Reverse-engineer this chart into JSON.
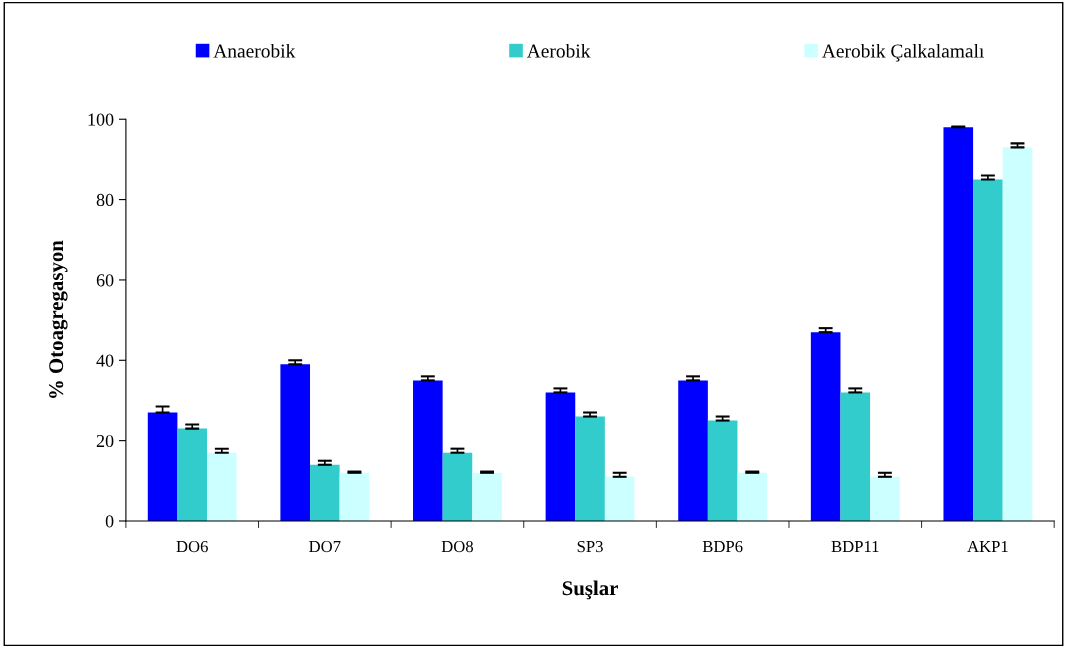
{
  "chart_data": {
    "type": "bar",
    "xlabel": "Suşlar",
    "ylabel": "% Otoagregasyon",
    "categories": [
      "DO6",
      "DO7",
      "DO8",
      "SP3",
      "BDP6",
      "BDP11",
      "AKP1"
    ],
    "series": [
      {
        "name": "Anaerobik",
        "color": "#0000ff",
        "values": [
          27,
          39,
          35,
          32,
          35,
          47,
          98
        ],
        "errors": [
          [
            27,
            28.5
          ],
          [
            39,
            40
          ],
          [
            35,
            36
          ],
          [
            32,
            33
          ],
          [
            35,
            36
          ],
          [
            47,
            48
          ],
          [
            98,
            98.2
          ]
        ]
      },
      {
        "name": "Aerobik",
        "color": "#33cccc",
        "values": [
          23,
          14,
          17,
          26,
          25,
          32,
          85
        ],
        "errors": [
          [
            23,
            24
          ],
          [
            14,
            15
          ],
          [
            17,
            18
          ],
          [
            26,
            27
          ],
          [
            25,
            26
          ],
          [
            32,
            33
          ],
          [
            85,
            86
          ]
        ]
      },
      {
        "name": "Aerobik Çalkalamalı",
        "color": "#ccffff",
        "values": [
          17,
          12,
          12,
          11,
          12,
          11,
          93
        ],
        "errors": [
          [
            17,
            18
          ],
          [
            12,
            12.3
          ],
          [
            12,
            12.3
          ],
          [
            11,
            12
          ],
          [
            12,
            12.3
          ],
          [
            11,
            12
          ],
          [
            93,
            94
          ]
        ]
      }
    ],
    "ylim": [
      0,
      100
    ],
    "yticks": [
      0,
      20,
      40,
      60,
      80,
      100
    ],
    "grid": false,
    "legend": "top"
  }
}
